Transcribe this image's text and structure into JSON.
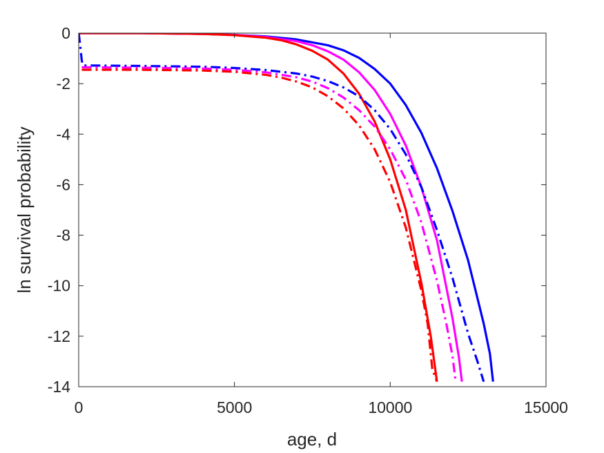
{
  "chart_data": {
    "type": "line",
    "title": "",
    "xlabel": "age, d",
    "ylabel": "ln survival probability",
    "xlim": [
      0,
      15000
    ],
    "ylim": [
      -14,
      0
    ],
    "xticks": [
      0,
      5000,
      10000,
      15000
    ],
    "yticks": [
      0,
      -2,
      -4,
      -6,
      -8,
      -10,
      -12,
      -14
    ],
    "xtick_labels": [
      "0",
      "5000",
      "10000",
      "15000"
    ],
    "ytick_labels": [
      "0",
      "-2",
      "-4",
      "-6",
      "-8",
      "-10",
      "-12",
      "-14"
    ],
    "grid": false,
    "legend": "none",
    "series": [
      {
        "color": "#0000ff",
        "style": "solid",
        "x": [
          0,
          2000,
          4000,
          5000,
          6000,
          7000,
          8000,
          8500,
          9000,
          9500,
          10000,
          10500,
          11000,
          11500,
          12000,
          12500,
          13000,
          13200,
          13300
        ],
        "y": [
          0,
          0,
          -0.03,
          -0.07,
          -0.13,
          -0.25,
          -0.48,
          -0.68,
          -0.98,
          -1.42,
          -2.0,
          -2.85,
          -3.95,
          -5.35,
          -7.05,
          -9.0,
          -11.5,
          -12.7,
          -13.8
        ]
      },
      {
        "color": "#ff00ff",
        "style": "solid",
        "x": [
          0,
          2000,
          4000,
          5000,
          6000,
          7000,
          7500,
          8000,
          8500,
          9000,
          9500,
          10000,
          10500,
          11000,
          11500,
          12000,
          12200,
          12300
        ],
        "y": [
          0,
          0,
          -0.03,
          -0.07,
          -0.15,
          -0.32,
          -0.48,
          -0.72,
          -1.05,
          -1.55,
          -2.25,
          -3.2,
          -4.45,
          -6.1,
          -8.2,
          -11.3,
          -12.8,
          -13.8
        ]
      },
      {
        "color": "#ff0000",
        "style": "solid",
        "x": [
          0,
          2000,
          4000,
          5000,
          6000,
          6500,
          7000,
          7500,
          8000,
          8500,
          9000,
          9500,
          10000,
          10500,
          11000,
          11300,
          11500
        ],
        "y": [
          0,
          0,
          -0.03,
          -0.08,
          -0.18,
          -0.28,
          -0.45,
          -0.7,
          -1.05,
          -1.6,
          -2.4,
          -3.5,
          -5.0,
          -7.0,
          -9.9,
          -12.0,
          -13.8
        ]
      },
      {
        "color": "#0000ff",
        "style": "dashdot",
        "x": [
          0,
          50,
          100,
          150,
          2000,
          4000,
          5000,
          6000,
          7000,
          7500,
          8000,
          8500,
          9000,
          9500,
          10000,
          10500,
          11000,
          11500,
          12000,
          12500,
          12800,
          13000
        ],
        "y": [
          0,
          -0.5,
          -1.1,
          -1.28,
          -1.3,
          -1.33,
          -1.38,
          -1.46,
          -1.6,
          -1.72,
          -1.9,
          -2.15,
          -2.5,
          -3.05,
          -3.8,
          -4.8,
          -6.1,
          -7.8,
          -9.7,
          -11.9,
          -13.0,
          -13.8
        ]
      },
      {
        "color": "#ff00ff",
        "style": "dashdot",
        "x": [
          100,
          2000,
          4000,
          5000,
          6000,
          7000,
          7500,
          8000,
          8500,
          9000,
          9500,
          10000,
          10500,
          11000,
          11500,
          11800,
          12000,
          12100
        ],
        "y": [
          -1.35,
          -1.37,
          -1.4,
          -1.45,
          -1.55,
          -1.75,
          -1.92,
          -2.18,
          -2.55,
          -3.05,
          -3.7,
          -4.6,
          -5.8,
          -7.5,
          -9.8,
          -11.5,
          -12.8,
          -13.8
        ]
      },
      {
        "color": "#ff0000",
        "style": "dashdot",
        "x": [
          100,
          2000,
          4000,
          5000,
          6000,
          6500,
          7000,
          7500,
          8000,
          8500,
          9000,
          9500,
          10000,
          10500,
          11000,
          11200,
          11350,
          11500
        ],
        "y": [
          -1.45,
          -1.45,
          -1.48,
          -1.53,
          -1.65,
          -1.76,
          -1.92,
          -2.15,
          -2.5,
          -2.98,
          -3.65,
          -4.6,
          -5.9,
          -7.7,
          -10.2,
          -11.5,
          -13.3,
          -13.8
        ]
      }
    ]
  }
}
